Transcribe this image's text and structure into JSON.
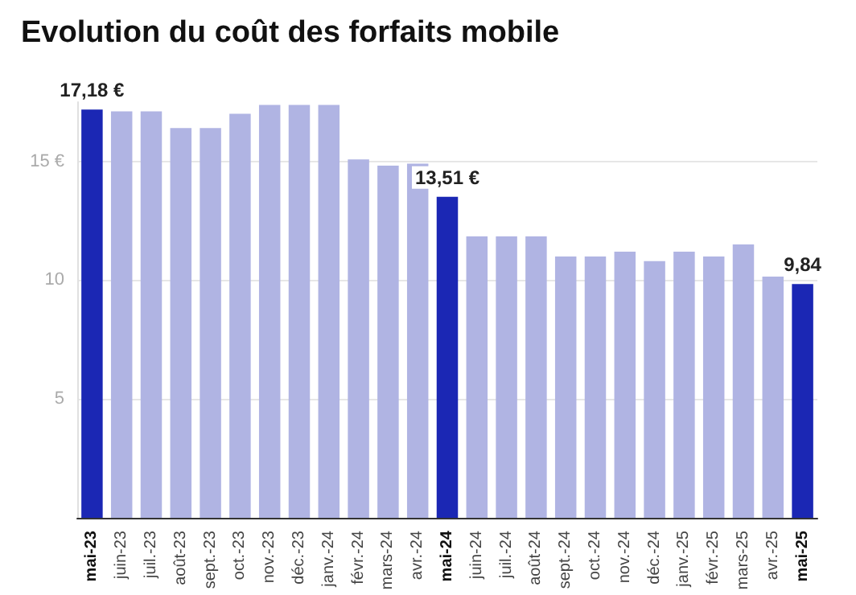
{
  "chart_data": {
    "type": "bar",
    "title": "Evolution du coût des forfaits mobile",
    "categories": [
      "mai-23",
      "juin-23",
      "juil.-23",
      "août-23",
      "sept.-23",
      "oct.-23",
      "nov.-23",
      "déc.-23",
      "janv.-24",
      "févr.-24",
      "mars-24",
      "avr.-24",
      "mai-24",
      "juin-24",
      "juil.-24",
      "août-24",
      "sept.-24",
      "oct.-24",
      "nov.-24",
      "déc.-24",
      "janv.-25",
      "févr.-25",
      "mars-25",
      "avr.-25",
      "mai-25"
    ],
    "values": [
      17.18,
      17.1,
      17.1,
      16.4,
      16.4,
      17.0,
      17.37,
      17.37,
      17.37,
      15.08,
      14.82,
      14.9,
      13.51,
      11.84,
      11.84,
      11.84,
      11.0,
      11.0,
      11.2,
      10.8,
      11.2,
      11.0,
      11.5,
      10.15,
      9.84
    ],
    "colors": [
      "#1b27b4",
      "#b0b4e3",
      "#b0b4e3",
      "#b0b4e3",
      "#b0b4e3",
      "#b0b4e3",
      "#b0b4e3",
      "#b0b4e3",
      "#b0b4e3",
      "#b0b4e3",
      "#b0b4e3",
      "#b0b4e3",
      "#1b27b4",
      "#b0b4e3",
      "#b0b4e3",
      "#b0b4e3",
      "#b0b4e3",
      "#b0b4e3",
      "#b0b4e3",
      "#b0b4e3",
      "#b0b4e3",
      "#b0b4e3",
      "#b0b4e3",
      "#b0b4e3",
      "#1b27b4"
    ],
    "value_labels": [
      "17,18 €",
      null,
      null,
      null,
      null,
      null,
      null,
      null,
      null,
      null,
      null,
      null,
      "13,51 €",
      null,
      null,
      null,
      null,
      null,
      null,
      null,
      null,
      null,
      null,
      null,
      "9,84"
    ],
    "ylim": [
      0,
      18
    ],
    "yticks": [
      5,
      10,
      {
        "value": 15,
        "label": "15 €"
      }
    ],
    "grid": "y"
  }
}
